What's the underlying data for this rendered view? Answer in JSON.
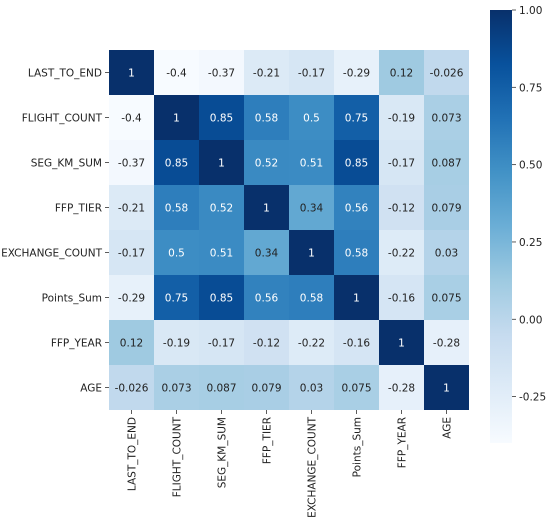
{
  "chart_data": {
    "type": "heatmap",
    "variables": [
      "LAST_TO_END",
      "FLIGHT_COUNT",
      "SEG_KM_SUM",
      "FFP_TIER",
      "EXCHANGE_COUNT",
      "Points_Sum",
      "FFP_YEAR",
      "AGE"
    ],
    "matrix": [
      [
        1,
        -0.4,
        -0.37,
        -0.21,
        -0.17,
        -0.29,
        0.12,
        -0.026
      ],
      [
        -0.4,
        1,
        0.85,
        0.58,
        0.5,
        0.75,
        -0.19,
        0.073
      ],
      [
        -0.37,
        0.85,
        1,
        0.52,
        0.51,
        0.85,
        -0.17,
        0.087
      ],
      [
        -0.21,
        0.58,
        0.52,
        1,
        0.34,
        0.56,
        -0.12,
        0.079
      ],
      [
        -0.17,
        0.5,
        0.51,
        0.34,
        1,
        0.58,
        -0.22,
        0.03
      ],
      [
        -0.29,
        0.75,
        0.85,
        0.56,
        0.58,
        1,
        -0.16,
        0.075
      ],
      [
        0.12,
        -0.19,
        -0.17,
        -0.12,
        -0.22,
        -0.16,
        1,
        -0.28
      ],
      [
        -0.026,
        0.073,
        0.087,
        0.079,
        0.03,
        0.075,
        -0.28,
        1
      ]
    ],
    "colormap": "Blues",
    "vmin": -0.4,
    "vmax": 1.0,
    "colorbar_ticks": [
      1.0,
      0.75,
      0.5,
      0.25,
      0.0,
      -0.25
    ],
    "colorbar_tick_labels": [
      "1.00",
      "0.75",
      "0.50",
      "0.25",
      "0.00",
      "-0.25"
    ],
    "annotations": true
  }
}
